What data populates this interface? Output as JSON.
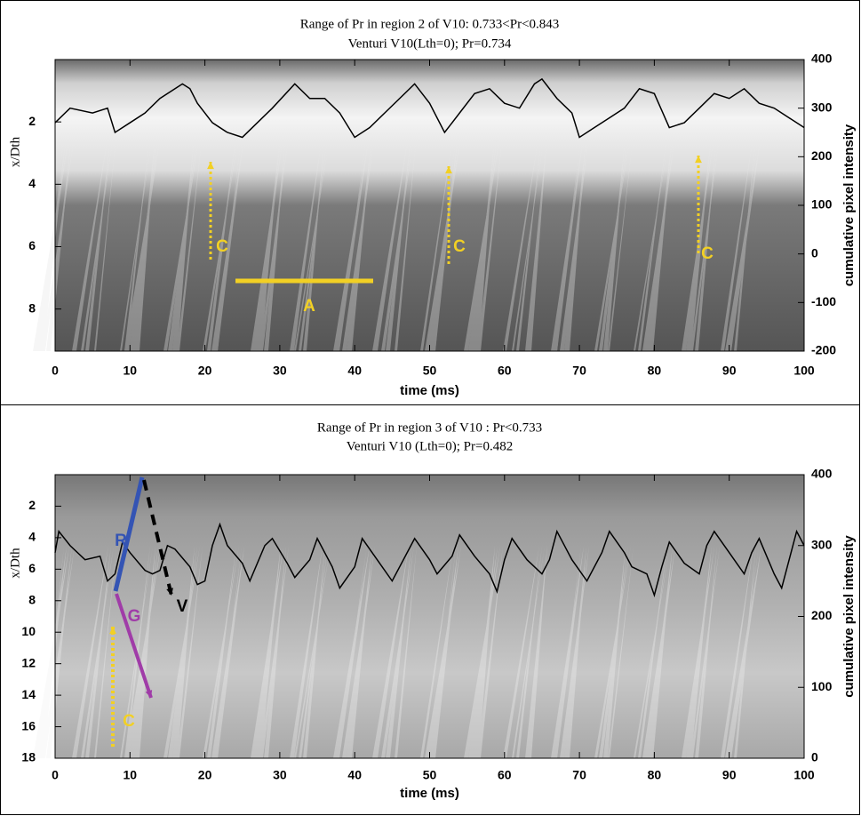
{
  "chart_data": [
    {
      "type": "line",
      "title": "Range of Pr in region 2 of V10: 0.733<Pr<0.843",
      "subtitle": "Venturi V10(Lth=0); Pr=0.734",
      "xlabel": "time (ms)",
      "ylabel": "x/Dth",
      "y2label": "cumulative pixel intensity",
      "xlim": [
        0,
        100
      ],
      "xticks": [
        0,
        10,
        20,
        30,
        40,
        50,
        60,
        70,
        80,
        90,
        100
      ],
      "ylim": [
        0,
        9.35
      ],
      "yticks": [
        2,
        4,
        6,
        8
      ],
      "y_inverted": true,
      "y2lim": [
        -200,
        400
      ],
      "y2ticks": [
        -200,
        -100,
        0,
        100,
        200,
        300,
        400
      ],
      "annotations": [
        "C",
        "C",
        "C",
        "A"
      ],
      "x": [
        0,
        2,
        5,
        7,
        8,
        10,
        12,
        14,
        17,
        18,
        19,
        21,
        23,
        25,
        27,
        29,
        32,
        34,
        36,
        38,
        40,
        42,
        44,
        46,
        48,
        50,
        52,
        54,
        56,
        58,
        60,
        62,
        64,
        65,
        67,
        69,
        70,
        72,
        74,
        76,
        78,
        80,
        82,
        84,
        86,
        88,
        90,
        92,
        94,
        96,
        98,
        100
      ],
      "series": [
        {
          "color": "#000000",
          "axis": "y2",
          "values": [
            270,
            300,
            290,
            300,
            250,
            270,
            290,
            320,
            350,
            340,
            310,
            270,
            250,
            240,
            270,
            300,
            350,
            320,
            320,
            290,
            240,
            260,
            290,
            320,
            350,
            310,
            250,
            290,
            330,
            340,
            310,
            300,
            350,
            360,
            320,
            290,
            240,
            260,
            280,
            300,
            340,
            330,
            260,
            270,
            300,
            330,
            320,
            340,
            310,
            300,
            280,
            260
          ]
        }
      ]
    },
    {
      "type": "line",
      "title": "Range of Pr in region 3 of V10 : Pr<0.733",
      "subtitle": "Venturi V10 (Lth=0); Pr=0.482",
      "xlabel": "time (ms)",
      "ylabel": "x/Dth",
      "y2label": "cumulative pixel intensity",
      "xlim": [
        0,
        100
      ],
      "xticks": [
        0,
        10,
        20,
        30,
        40,
        50,
        60,
        70,
        80,
        90,
        100
      ],
      "ylim": [
        0,
        18
      ],
      "yticks": [
        2,
        4,
        6,
        8,
        10,
        12,
        14,
        16,
        18
      ],
      "y_inverted": true,
      "y2lim": [
        0,
        400
      ],
      "y2ticks": [
        0,
        100,
        200,
        300,
        400
      ],
      "annotations": [
        "R",
        "V",
        "G",
        "C"
      ],
      "x": [
        0,
        0.5,
        2,
        4,
        6,
        7,
        8,
        9,
        10,
        12,
        13,
        14,
        15,
        16,
        18,
        19,
        20,
        21,
        22,
        23,
        25,
        26,
        28,
        29,
        31,
        32,
        34,
        35,
        37,
        38,
        40,
        41,
        43,
        45,
        47,
        48,
        50,
        51,
        53,
        54,
        56,
        58,
        59,
        60,
        61,
        63,
        65,
        66,
        67,
        69,
        71,
        73,
        74,
        76,
        77,
        79,
        80,
        81,
        82,
        84,
        86,
        87,
        88,
        90,
        92,
        93,
        94,
        96,
        97,
        99,
        100
      ],
      "series": [
        {
          "color": "#000000",
          "axis": "y2",
          "values": [
            290,
            320,
            300,
            280,
            285,
            250,
            260,
            305,
            290,
            265,
            260,
            265,
            300,
            295,
            270,
            245,
            250,
            300,
            330,
            300,
            275,
            250,
            300,
            310,
            275,
            255,
            280,
            310,
            270,
            240,
            270,
            310,
            280,
            250,
            290,
            310,
            280,
            260,
            285,
            315,
            285,
            260,
            235,
            280,
            310,
            280,
            260,
            280,
            320,
            280,
            250,
            290,
            320,
            290,
            270,
            260,
            230,
            270,
            305,
            275,
            260,
            300,
            320,
            290,
            260,
            290,
            310,
            260,
            240,
            320,
            300
          ]
        }
      ]
    }
  ]
}
